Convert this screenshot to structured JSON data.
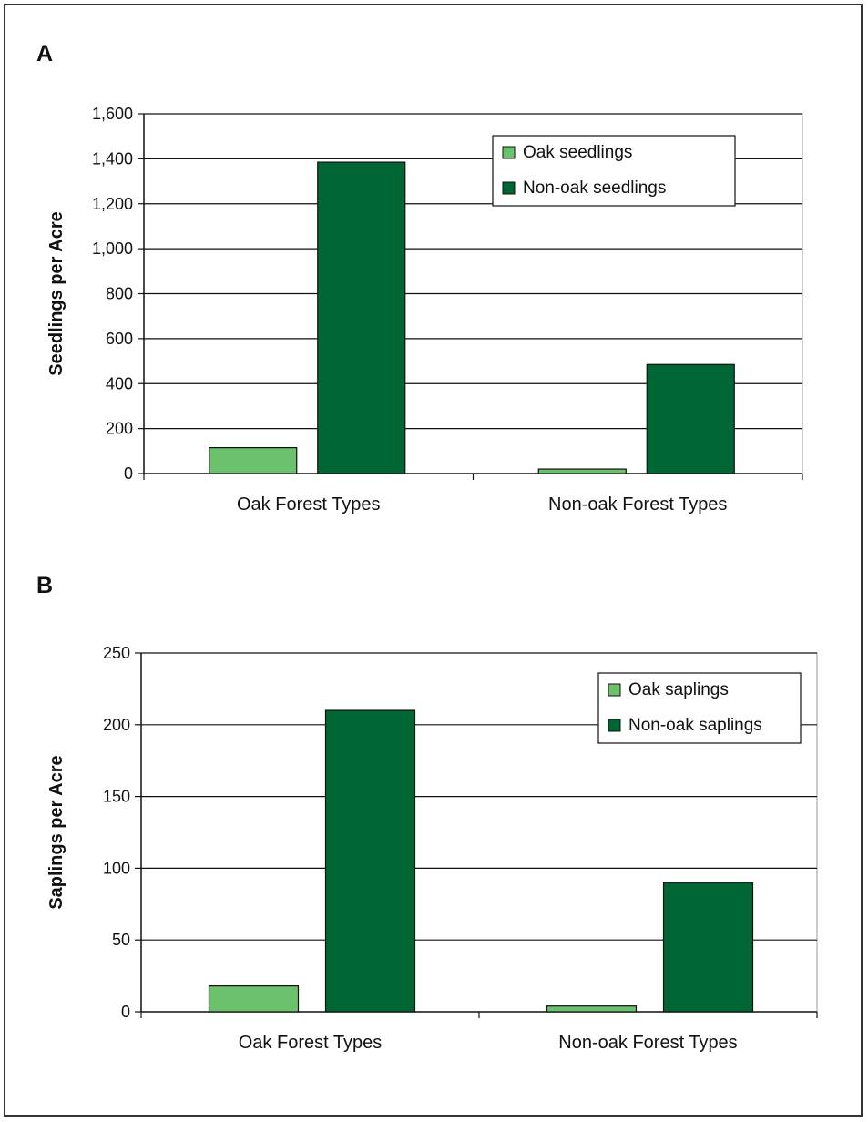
{
  "chart_data": [
    {
      "panel": "A",
      "type": "bar",
      "categories": [
        "Oak Forest Types",
        "Non-oak Forest Types"
      ],
      "series": [
        {
          "name": "Oak seedlings",
          "values": [
            115,
            20
          ],
          "color": "#6cc26c"
        },
        {
          "name": "Non-oak seedlings",
          "values": [
            1385,
            485
          ],
          "color": "#006633"
        }
      ],
      "title": "",
      "xlabel": "",
      "ylabel": "Seedlings per Acre",
      "ylim": [
        0,
        1600
      ],
      "yticks": [
        0,
        200,
        400,
        600,
        800,
        1000,
        1200,
        1400,
        1600
      ],
      "ytick_labels": [
        "0",
        "200",
        "400",
        "600",
        "800",
        "1,000",
        "1,200",
        "1,400",
        "1,600"
      ],
      "grid": true,
      "legend_position": "top-right"
    },
    {
      "panel": "B",
      "type": "bar",
      "categories": [
        "Oak Forest Types",
        "Non-oak Forest Types"
      ],
      "series": [
        {
          "name": "Oak saplings",
          "values": [
            18,
            4
          ],
          "color": "#6cc26c"
        },
        {
          "name": "Non-oak saplings",
          "values": [
            210,
            90
          ],
          "color": "#006633"
        }
      ],
      "title": "",
      "xlabel": "",
      "ylabel": "Saplings per Acre",
      "ylim": [
        0,
        250
      ],
      "yticks": [
        0,
        50,
        100,
        150,
        200,
        250
      ],
      "ytick_labels": [
        "0",
        "50",
        "100",
        "150",
        "200",
        "250"
      ],
      "grid": true,
      "legend_position": "top-right"
    }
  ]
}
